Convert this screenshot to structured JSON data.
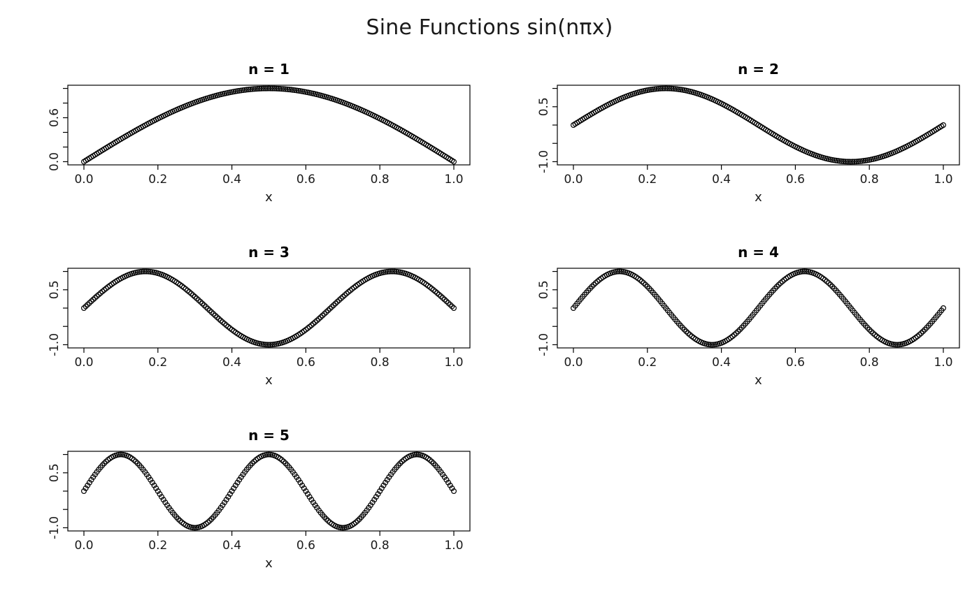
{
  "figure": {
    "title": "Sine Functions sin(nπx)",
    "background": "#ffffff",
    "text_color": "#1a1a1a",
    "series_color": "#000000",
    "grid_layout": "3x2"
  },
  "chart_data": [
    {
      "type": "scatter",
      "title": "n = 1",
      "n": 1,
      "function": "y = sin(n*π*x)",
      "marker": "open-circle",
      "xlabel": "x",
      "x_range": [
        0,
        1
      ],
      "num_points": 201,
      "ylim": [
        0,
        1
      ],
      "xticks": [
        0,
        0.2,
        0.4,
        0.6,
        0.8,
        1
      ],
      "xtick_labels": [
        "0.0",
        "0.2",
        "0.4",
        "0.6",
        "0.8",
        "1.0"
      ],
      "yticks": [
        0,
        0.2,
        0.4,
        0.6,
        0.8,
        1
      ],
      "ytick_labels": [
        "0.0",
        "",
        "",
        "0.6",
        "",
        ""
      ]
    },
    {
      "type": "scatter",
      "title": "n = 2",
      "n": 2,
      "function": "y = sin(n*π*x)",
      "marker": "open-circle",
      "xlabel": "x",
      "x_range": [
        0,
        1
      ],
      "num_points": 201,
      "ylim": [
        -1,
        1
      ],
      "xticks": [
        0,
        0.2,
        0.4,
        0.6,
        0.8,
        1
      ],
      "xtick_labels": [
        "0.0",
        "0.2",
        "0.4",
        "0.6",
        "0.8",
        "1.0"
      ],
      "yticks": [
        -1,
        -0.5,
        0,
        0.5,
        1
      ],
      "ytick_labels": [
        "-1.0",
        "",
        "",
        "0.5",
        ""
      ]
    },
    {
      "type": "scatter",
      "title": "n = 3",
      "n": 3,
      "function": "y = sin(n*π*x)",
      "marker": "open-circle",
      "xlabel": "x",
      "x_range": [
        0,
        1
      ],
      "num_points": 201,
      "ylim": [
        -1,
        1
      ],
      "xticks": [
        0,
        0.2,
        0.4,
        0.6,
        0.8,
        1
      ],
      "xtick_labels": [
        "0.0",
        "0.2",
        "0.4",
        "0.6",
        "0.8",
        "1.0"
      ],
      "yticks": [
        -1,
        -0.5,
        0,
        0.5,
        1
      ],
      "ytick_labels": [
        "-1.0",
        "",
        "",
        "0.5",
        ""
      ]
    },
    {
      "type": "scatter",
      "title": "n = 4",
      "n": 4,
      "function": "y = sin(n*π*x)",
      "marker": "open-circle",
      "xlabel": "x",
      "x_range": [
        0,
        1
      ],
      "num_points": 201,
      "ylim": [
        -1,
        1
      ],
      "xticks": [
        0,
        0.2,
        0.4,
        0.6,
        0.8,
        1
      ],
      "xtick_labels": [
        "0.0",
        "0.2",
        "0.4",
        "0.6",
        "0.8",
        "1.0"
      ],
      "yticks": [
        -1,
        -0.5,
        0,
        0.5,
        1
      ],
      "ytick_labels": [
        "-1.0",
        "",
        "",
        "0.5",
        ""
      ]
    },
    {
      "type": "scatter",
      "title": "n = 5",
      "n": 5,
      "function": "y = sin(n*π*x)",
      "marker": "open-circle",
      "xlabel": "x",
      "x_range": [
        0,
        1
      ],
      "num_points": 201,
      "ylim": [
        -1,
        1
      ],
      "xticks": [
        0,
        0.2,
        0.4,
        0.6,
        0.8,
        1
      ],
      "xtick_labels": [
        "0.0",
        "0.2",
        "0.4",
        "0.6",
        "0.8",
        "1.0"
      ],
      "yticks": [
        -1,
        -0.5,
        0,
        0.5,
        1
      ],
      "ytick_labels": [
        "-1.0",
        "",
        "",
        "0.5",
        ""
      ]
    }
  ]
}
